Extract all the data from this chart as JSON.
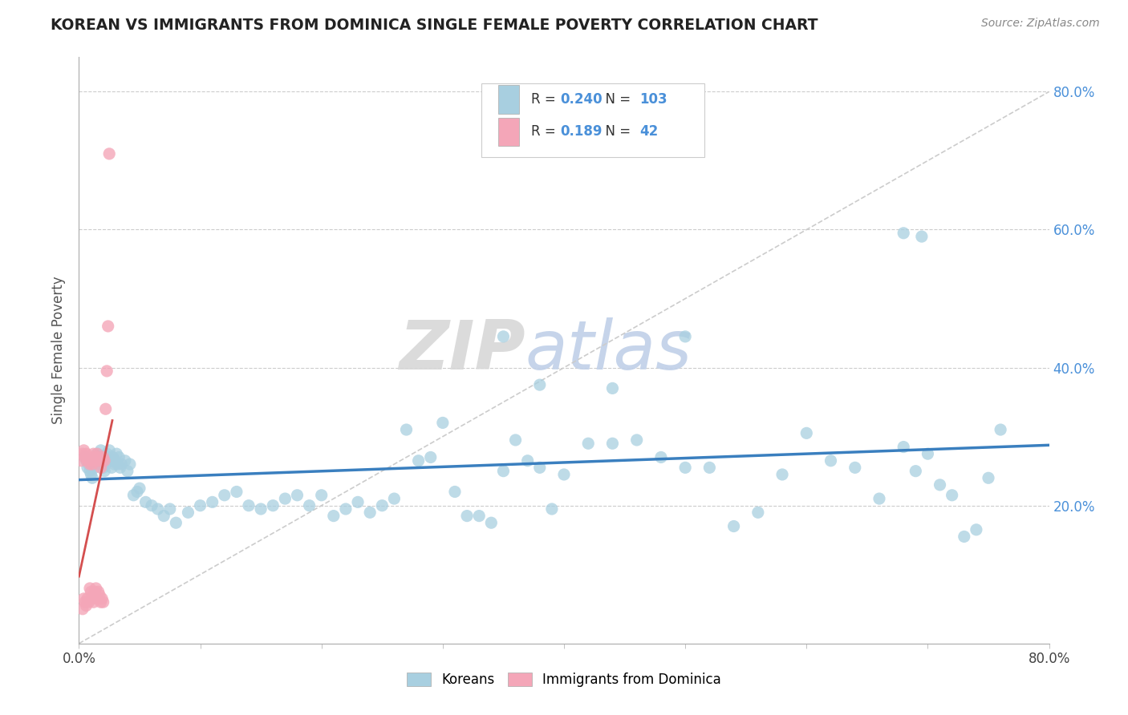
{
  "title": "KOREAN VS IMMIGRANTS FROM DOMINICA SINGLE FEMALE POVERTY CORRELATION CHART",
  "source": "Source: ZipAtlas.com",
  "ylabel_text": "Single Female Poverty",
  "x_min": 0.0,
  "x_max": 0.8,
  "y_min": 0.0,
  "y_max": 0.85,
  "y_ticks": [
    0.2,
    0.4,
    0.6,
    0.8
  ],
  "y_tick_labels": [
    "20.0%",
    "40.0%",
    "60.0%",
    "80.0%"
  ],
  "r_korean": 0.24,
  "n_korean": 103,
  "r_dominica": 0.189,
  "n_dominica": 42,
  "korean_color": "#a8cfe0",
  "dominica_color": "#f4a6b8",
  "korean_line_color": "#3a7fbf",
  "dominica_line_color": "#d44f4f",
  "background_color": "#ffffff",
  "grid_color": "#cccccc",
  "watermark_zip": "ZIP",
  "watermark_atlas": "atlas",
  "legend_label_1": "Koreans",
  "legend_label_2": "Immigrants from Dominica",
  "korean_x": [
    0.005,
    0.006,
    0.007,
    0.008,
    0.009,
    0.01,
    0.011,
    0.012,
    0.013,
    0.014,
    0.015,
    0.016,
    0.017,
    0.018,
    0.019,
    0.02,
    0.021,
    0.022,
    0.023,
    0.024,
    0.025,
    0.026,
    0.027,
    0.028,
    0.029,
    0.03,
    0.031,
    0.032,
    0.033,
    0.034,
    0.035,
    0.038,
    0.04,
    0.042,
    0.045,
    0.048,
    0.05,
    0.055,
    0.06,
    0.065,
    0.07,
    0.075,
    0.08,
    0.09,
    0.1,
    0.11,
    0.12,
    0.13,
    0.14,
    0.15,
    0.16,
    0.17,
    0.18,
    0.19,
    0.2,
    0.21,
    0.22,
    0.23,
    0.24,
    0.25,
    0.26,
    0.27,
    0.28,
    0.29,
    0.3,
    0.31,
    0.32,
    0.33,
    0.34,
    0.35,
    0.36,
    0.37,
    0.38,
    0.39,
    0.4,
    0.42,
    0.44,
    0.46,
    0.48,
    0.5,
    0.52,
    0.54,
    0.56,
    0.58,
    0.6,
    0.62,
    0.64,
    0.66,
    0.68,
    0.69,
    0.7,
    0.71,
    0.72,
    0.73,
    0.74,
    0.75,
    0.76,
    0.68,
    0.695,
    0.35,
    0.38,
    0.44,
    0.5
  ],
  "korean_y": [
    0.27,
    0.265,
    0.255,
    0.26,
    0.25,
    0.245,
    0.24,
    0.26,
    0.255,
    0.265,
    0.275,
    0.27,
    0.26,
    0.28,
    0.265,
    0.255,
    0.25,
    0.26,
    0.275,
    0.27,
    0.28,
    0.265,
    0.255,
    0.27,
    0.26,
    0.265,
    0.275,
    0.26,
    0.27,
    0.255,
    0.26,
    0.265,
    0.25,
    0.26,
    0.215,
    0.22,
    0.225,
    0.205,
    0.2,
    0.195,
    0.185,
    0.195,
    0.175,
    0.19,
    0.2,
    0.205,
    0.215,
    0.22,
    0.2,
    0.195,
    0.2,
    0.21,
    0.215,
    0.2,
    0.215,
    0.185,
    0.195,
    0.205,
    0.19,
    0.2,
    0.21,
    0.31,
    0.265,
    0.27,
    0.32,
    0.22,
    0.185,
    0.185,
    0.175,
    0.25,
    0.295,
    0.265,
    0.255,
    0.195,
    0.245,
    0.29,
    0.29,
    0.295,
    0.27,
    0.255,
    0.255,
    0.17,
    0.19,
    0.245,
    0.305,
    0.265,
    0.255,
    0.21,
    0.285,
    0.25,
    0.275,
    0.23,
    0.215,
    0.155,
    0.165,
    0.24,
    0.31,
    0.595,
    0.59,
    0.445,
    0.375,
    0.37,
    0.445
  ],
  "dominica_x": [
    0.002,
    0.003,
    0.004,
    0.005,
    0.006,
    0.007,
    0.008,
    0.009,
    0.01,
    0.011,
    0.012,
    0.013,
    0.014,
    0.015,
    0.016,
    0.017,
    0.018,
    0.019,
    0.02,
    0.021,
    0.022,
    0.023,
    0.024,
    0.025,
    0.003,
    0.004,
    0.005,
    0.006,
    0.007,
    0.008,
    0.009,
    0.01,
    0.011,
    0.012,
    0.013,
    0.014,
    0.015,
    0.016,
    0.017,
    0.018,
    0.019,
    0.02
  ],
  "dominica_y": [
    0.265,
    0.275,
    0.28,
    0.27,
    0.275,
    0.265,
    0.27,
    0.26,
    0.265,
    0.26,
    0.275,
    0.27,
    0.265,
    0.275,
    0.27,
    0.265,
    0.255,
    0.265,
    0.27,
    0.265,
    0.34,
    0.395,
    0.46,
    0.71,
    0.05,
    0.065,
    0.06,
    0.055,
    0.065,
    0.06,
    0.08,
    0.075,
    0.065,
    0.06,
    0.075,
    0.08,
    0.065,
    0.075,
    0.07,
    0.06,
    0.065,
    0.06
  ]
}
